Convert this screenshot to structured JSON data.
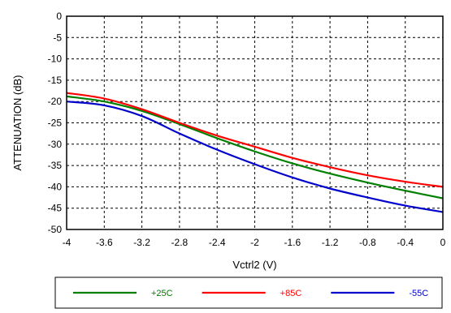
{
  "chart_data": {
    "type": "line",
    "title": "",
    "xlabel": "Vctrl2 (V)",
    "ylabel": "ATTENUATION (dB)",
    "xlim": [
      -4,
      0
    ],
    "ylim": [
      -50,
      0
    ],
    "x_ticks": [
      -4,
      -3.6,
      -3.2,
      -2.8,
      -2.4,
      -2,
      -1.6,
      -1.2,
      -0.8,
      -0.4,
      0
    ],
    "x_tick_labels": [
      "-4",
      "-3.6",
      "-3.2",
      "-2.8",
      "-2.4",
      "-2",
      "-1.6",
      "-1.2",
      "-0.8",
      "-0.4",
      "0"
    ],
    "y_ticks": [
      0,
      -5,
      -10,
      -15,
      -20,
      -25,
      -30,
      -35,
      -40,
      -45,
      -50
    ],
    "y_tick_labels": [
      "0",
      "-5",
      "-10",
      "-15",
      "-20",
      "-25",
      "-30",
      "-35",
      "-40",
      "-45",
      "-50"
    ],
    "grid": true,
    "legend_position": "bottom",
    "series": [
      {
        "name": "+25C",
        "color": "#008000",
        "x": [
          -4,
          -3.6,
          -3.2,
          -2.8,
          -2.4,
          -2,
          -1.6,
          -1.2,
          -0.8,
          -0.4,
          0
        ],
        "y": [
          -18.8,
          -20.0,
          -22.2,
          -25.3,
          -28.6,
          -31.7,
          -34.5,
          -36.9,
          -39.0,
          -40.9,
          -42.7
        ]
      },
      {
        "name": "+85C",
        "color": "#ff0000",
        "x": [
          -4,
          -3.6,
          -3.2,
          -2.8,
          -2.4,
          -2,
          -1.6,
          -1.2,
          -0.8,
          -0.4,
          0
        ],
        "y": [
          -18.0,
          -19.3,
          -21.8,
          -25.0,
          -28.0,
          -30.6,
          -33.2,
          -35.4,
          -37.3,
          -38.8,
          -40.0
        ]
      },
      {
        "name": "-55C",
        "color": "#0000cc",
        "x": [
          -4,
          -3.6,
          -3.2,
          -2.8,
          -2.4,
          -2,
          -1.6,
          -1.2,
          -0.8,
          -0.4,
          0
        ],
        "y": [
          -20.0,
          -20.9,
          -23.4,
          -27.5,
          -31.3,
          -34.7,
          -37.8,
          -40.4,
          -42.5,
          -44.4,
          -45.9
        ]
      }
    ]
  }
}
